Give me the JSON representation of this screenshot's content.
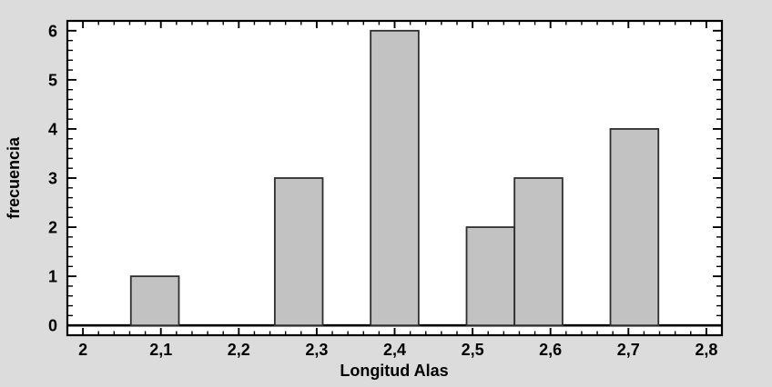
{
  "chart_data": {
    "type": "bar",
    "chart_kind": "histogram",
    "title": "",
    "xlabel": "Longitud Alas",
    "ylabel": "frecuencia",
    "xlim": [
      1.98,
      2.82
    ],
    "ylim": [
      -0.2,
      6.2
    ],
    "x_ticks": [
      2,
      2.1,
      2.2,
      2.3,
      2.4,
      2.5,
      2.6,
      2.7,
      2.8
    ],
    "x_tick_labels": [
      "2",
      "2,1",
      "2,2",
      "2,3",
      "2,4",
      "2,5",
      "2,6",
      "2,7",
      "2,8"
    ],
    "x_minor_tick_step": 0.02,
    "y_ticks": [
      0,
      1,
      2,
      3,
      4,
      5,
      6
    ],
    "y_tick_labels": [
      "0",
      "1",
      "2",
      "3",
      "4",
      "5",
      "6"
    ],
    "y_minor_tick_step": 0.2,
    "grid": "off",
    "legend": "none",
    "bin_width": 0.0615,
    "bars": [
      {
        "x_start": 2.0615,
        "x_end": 2.1231,
        "frequency": 1
      },
      {
        "x_start": 2.2462,
        "x_end": 2.3077,
        "frequency": 3
      },
      {
        "x_start": 2.3692,
        "x_end": 2.4308,
        "frequency": 6
      },
      {
        "x_start": 2.4923,
        "x_end": 2.5538,
        "frequency": 2
      },
      {
        "x_start": 2.5538,
        "x_end": 2.6154,
        "frequency": 3
      },
      {
        "x_start": 2.6769,
        "x_end": 2.7385,
        "frequency": 4
      }
    ],
    "colors": {
      "canvas_bg": "#dcdcdc",
      "plot_bg": "#ffffff",
      "bar_fill": "#c2c2c2",
      "bar_border": "#2e2e2e",
      "axis_line": "#000000",
      "tick": "#000000",
      "text": "#000000"
    }
  }
}
